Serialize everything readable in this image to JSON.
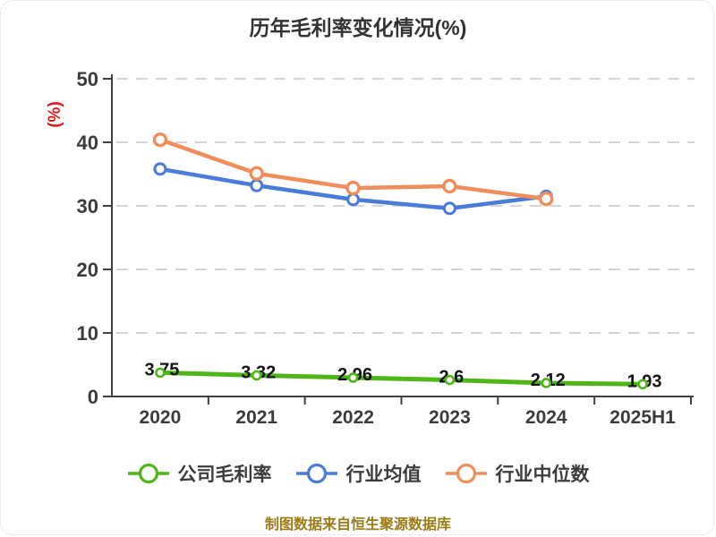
{
  "chart_data": {
    "type": "line",
    "title": "历年毛利率变化情况(%)",
    "ylabel": "(%)",
    "categories": [
      "2020",
      "2021",
      "2022",
      "2023",
      "2024",
      "2025H1"
    ],
    "ylim": [
      0,
      50
    ],
    "yticks": [
      0,
      10,
      20,
      30,
      40,
      50
    ],
    "grid": "horizontal-dashed",
    "legend_position": "bottom",
    "series": [
      {
        "name": "公司毛利率",
        "color": "#4fb617",
        "values": [
          3.75,
          3.32,
          2.96,
          2.6,
          2.12,
          1.93
        ],
        "labels": [
          "3.75",
          "3.32",
          "2.96",
          "2.6",
          "2.12",
          "1.93"
        ]
      },
      {
        "name": "行业均值",
        "color": "#4a7bd9",
        "values": [
          35.8,
          33.2,
          31.0,
          29.6,
          31.5,
          null
        ]
      },
      {
        "name": "行业中位数",
        "color": "#ef8e5a",
        "values": [
          40.4,
          35.1,
          32.8,
          33.1,
          31.1,
          null
        ]
      }
    ]
  },
  "footer": {
    "text": "制图数据来自恒生聚源数据库",
    "color": "#9d7b16"
  },
  "colors": {
    "title": "#333333",
    "axis": "#3f3f3f",
    "tick_text": "#3b3b3b",
    "grid": "#d5d5d5",
    "ylabel": "#e11b1b",
    "data_label": "#141414",
    "marker_fill": "#ffffff"
  }
}
